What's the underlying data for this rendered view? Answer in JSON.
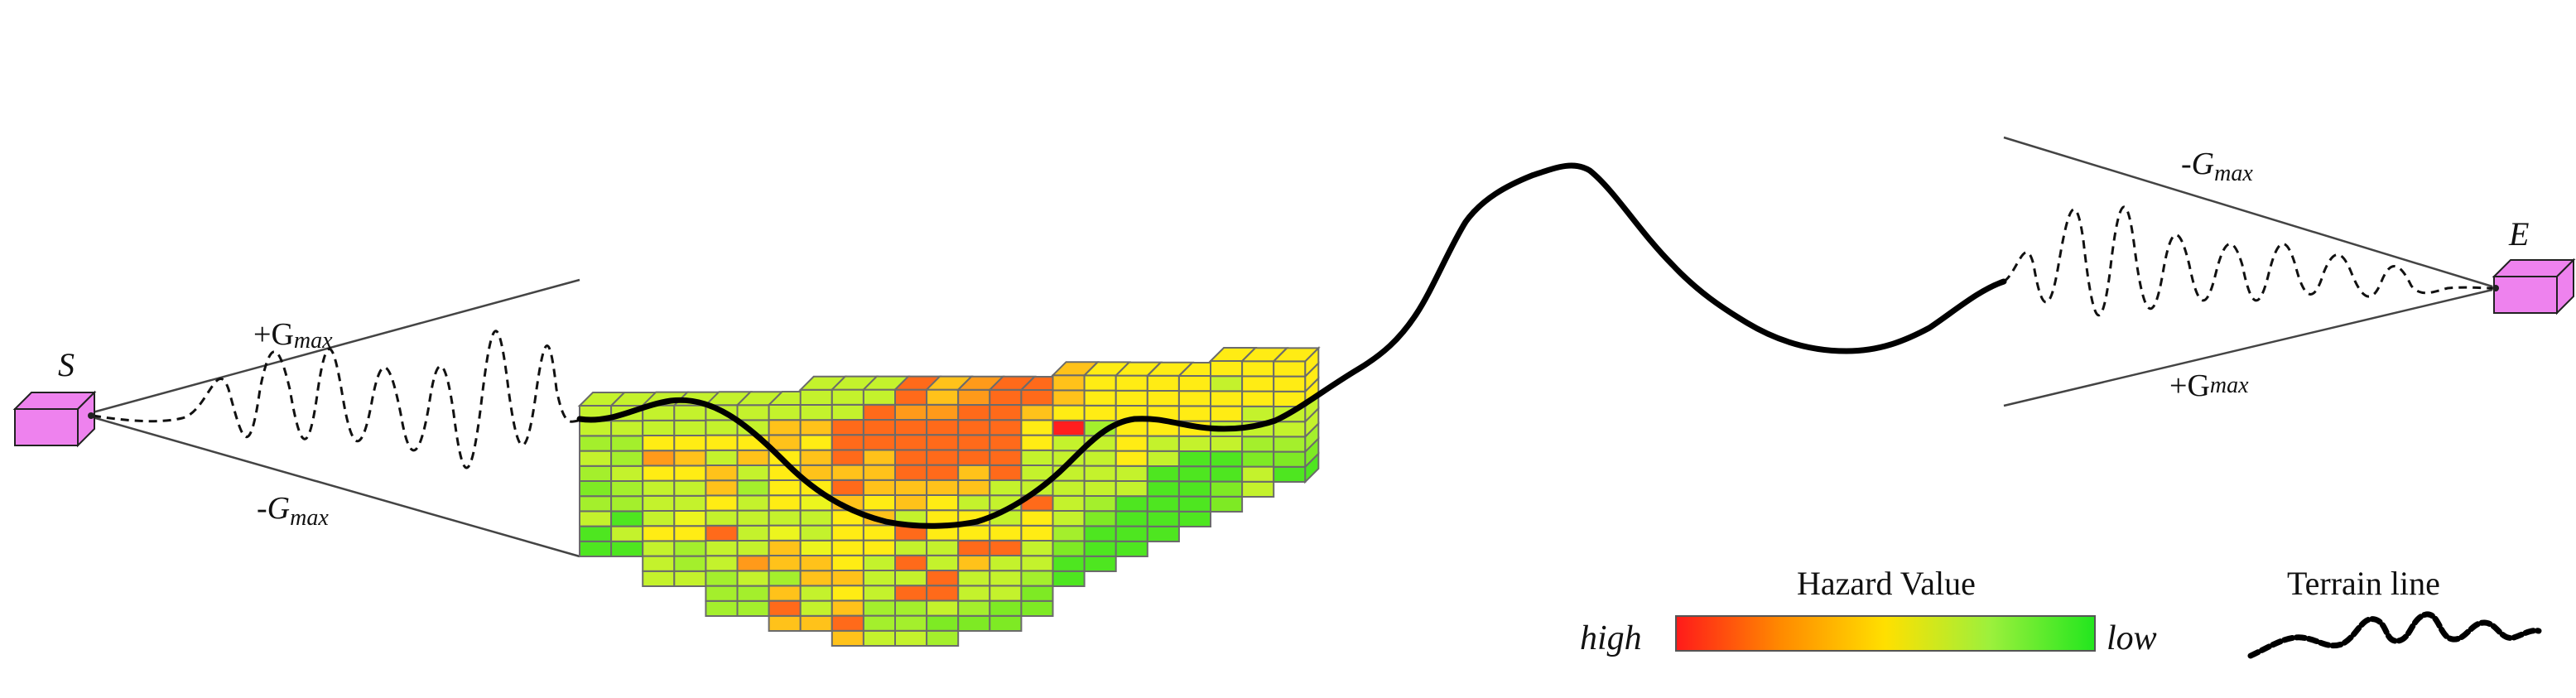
{
  "nodes": {
    "start": {
      "label": "S",
      "color": "#ee82ee"
    },
    "end": {
      "label": "E",
      "color": "#ee82ee"
    }
  },
  "bounds": {
    "symbol": "G",
    "subscript": "max",
    "start_upper": "+",
    "start_lower": "-",
    "end_upper": "-",
    "end_lower": "+"
  },
  "legend": {
    "hazard_title": "Hazard Value",
    "high_label": "high",
    "low_label": "low",
    "gradient_colors": [
      "#ff1a1a",
      "#ff8a00",
      "#ffe000",
      "#9cf03c",
      "#22e61e"
    ],
    "terrain_title": "Terrain line"
  },
  "grid": {
    "columns": 23,
    "column_heights": [
      10,
      10,
      12,
      12,
      14,
      14,
      15,
      16,
      17,
      17,
      17,
      17,
      16,
      16,
      15,
      14,
      13,
      12,
      11,
      10,
      10,
      9,
      8
    ],
    "palette": {
      "R": "#ff1e1e",
      "O": "#ff6a1a",
      "o": "#ff9a1a",
      "A": "#ffc21a",
      "Y": "#ffec14",
      "y": "#ecf51e",
      "L": "#c4f22c",
      "l": "#a4ef2c",
      "g": "#7eea24",
      "G": "#4ee620"
    },
    "column_codes": [
      "GGLlglLlLL",
      "GLGllLllLL",
      "LLLYLLLYoY",
      "LllYyLLYAY",
      "lllLLOLYAALY",
      "llLoLLLLlLAY",
      "AOAlAAyLYYYYAA",
      "ALLAAyLLyYAAYA",
      "AOAYAYYYYAOAOOO",
      "LllLLLYYAYAAAOOO",
      "LllOLOLOLAAOOOOoO",
      "lgLOOLLYYYAOOOOoA",
      "glLLAOYYLAAOOOOoO",
      "ggLLLOYLLLOOOOOOO",
      "gglLLYYOLLLYYAOOO",
      "GGglLLLLLLRYAALYOR",
      "GGGglLLLLlYYYYYAAR",
      "GGGGLLYYYYYYYYYAAR",
      "GGGGGLLYYYYYYYAOYOLR",
      "GGGGGLYYYYYYOYLYYOAO",
      "ggGGLLYYLYYLYYLYYAYY",
      "LLglLLYYYYYLLLYYYYAA",
      "GglLLYYYYYYYYYYYLYOO"
    ]
  },
  "cube_colors": {
    "left_face": "#5d6d5e",
    "top_face": "#eaffea"
  }
}
